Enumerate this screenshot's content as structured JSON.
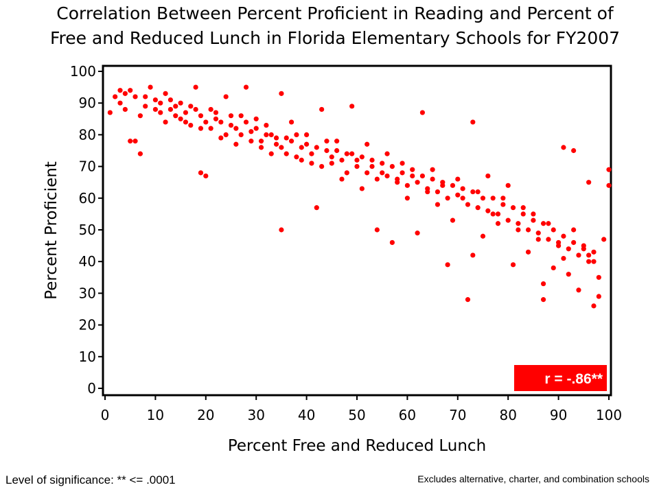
{
  "chart_data": {
    "type": "scatter",
    "title_line1": "Correlation Between Percent Proficient in Reading and Percent of",
    "title_line2": "Free and Reduced Lunch in Florida Elementary Schools for FY2007",
    "xlabel": "Percent Free and Reduced Lunch",
    "ylabel": "Percent Proficient",
    "xlim": [
      0,
      100
    ],
    "ylim": [
      0,
      100
    ],
    "xticks": [
      "0",
      "10",
      "20",
      "30",
      "40",
      "50",
      "60",
      "70",
      "80",
      "90",
      "100"
    ],
    "yticks": [
      "0",
      "10",
      "20",
      "30",
      "40",
      "50",
      "60",
      "70",
      "80",
      "90",
      "100"
    ],
    "marker_color": "#ff0000",
    "annotation": "r = -.86**",
    "points": [
      [
        1,
        87
      ],
      [
        2,
        92
      ],
      [
        3,
        94
      ],
      [
        4,
        88
      ],
      [
        5,
        94
      ],
      [
        5,
        78
      ],
      [
        6,
        78
      ],
      [
        7,
        74
      ],
      [
        6,
        92
      ],
      [
        8,
        89
      ],
      [
        9,
        95
      ],
      [
        10,
        91
      ],
      [
        11,
        87
      ],
      [
        12,
        93
      ],
      [
        13,
        88
      ],
      [
        14,
        86
      ],
      [
        15,
        90
      ],
      [
        16,
        84
      ],
      [
        17,
        89
      ],
      [
        18,
        95
      ],
      [
        19,
        82
      ],
      [
        19,
        68
      ],
      [
        20,
        67
      ],
      [
        21,
        88
      ],
      [
        22,
        85
      ],
      [
        23,
        79
      ],
      [
        24,
        92
      ],
      [
        25,
        83
      ],
      [
        26,
        77
      ],
      [
        27,
        86
      ],
      [
        28,
        95
      ],
      [
        29,
        81
      ],
      [
        30,
        85
      ],
      [
        31,
        78
      ],
      [
        32,
        83
      ],
      [
        33,
        80
      ],
      [
        34,
        77
      ],
      [
        35,
        93
      ],
      [
        35,
        50
      ],
      [
        36,
        79
      ],
      [
        37,
        84
      ],
      [
        38,
        73
      ],
      [
        39,
        76
      ],
      [
        40,
        80
      ],
      [
        41,
        71
      ],
      [
        42,
        57
      ],
      [
        43,
        88
      ],
      [
        44,
        75
      ],
      [
        45,
        73
      ],
      [
        46,
        78
      ],
      [
        47,
        66
      ],
      [
        48,
        74
      ],
      [
        49,
        89
      ],
      [
        50,
        72
      ],
      [
        51,
        63
      ],
      [
        52,
        77
      ],
      [
        53,
        70
      ],
      [
        54,
        50
      ],
      [
        55,
        68
      ],
      [
        56,
        74
      ],
      [
        57,
        46
      ],
      [
        58,
        65
      ],
      [
        59,
        71
      ],
      [
        60,
        60
      ],
      [
        61,
        67
      ],
      [
        62,
        49
      ],
      [
        63,
        87
      ],
      [
        64,
        62
      ],
      [
        65,
        69
      ],
      [
        66,
        58
      ],
      [
        67,
        64
      ],
      [
        68,
        39
      ],
      [
        69,
        53
      ],
      [
        70,
        66
      ],
      [
        71,
        60
      ],
      [
        72,
        28
      ],
      [
        73,
        84
      ],
      [
        73,
        42
      ],
      [
        74,
        62
      ],
      [
        75,
        48
      ],
      [
        76,
        67
      ],
      [
        77,
        55
      ],
      [
        78,
        52
      ],
      [
        79,
        60
      ],
      [
        80,
        64
      ],
      [
        81,
        39
      ],
      [
        82,
        50
      ],
      [
        83,
        57
      ],
      [
        84,
        43
      ],
      [
        85,
        55
      ],
      [
        86,
        47
      ],
      [
        87,
        28
      ],
      [
        87,
        33
      ],
      [
        88,
        52
      ],
      [
        89,
        38
      ],
      [
        90,
        46
      ],
      [
        91,
        76
      ],
      [
        91,
        41
      ],
      [
        92,
        36
      ],
      [
        93,
        75
      ],
      [
        93,
        50
      ],
      [
        94,
        31
      ],
      [
        95,
        44
      ],
      [
        96,
        42
      ],
      [
        96,
        65
      ],
      [
        97,
        26
      ],
      [
        97,
        40
      ],
      [
        98,
        29
      ],
      [
        98,
        35
      ],
      [
        99,
        47
      ],
      [
        100,
        69
      ],
      [
        100,
        64
      ],
      [
        3,
        90
      ],
      [
        4,
        93
      ],
      [
        7,
        86
      ],
      [
        8,
        92
      ],
      [
        10,
        88
      ],
      [
        11,
        90
      ],
      [
        12,
        84
      ],
      [
        13,
        91
      ],
      [
        14,
        89
      ],
      [
        15,
        85
      ],
      [
        16,
        87
      ],
      [
        17,
        83
      ],
      [
        18,
        88
      ],
      [
        19,
        86
      ],
      [
        20,
        84
      ],
      [
        21,
        82
      ],
      [
        22,
        87
      ],
      [
        23,
        84
      ],
      [
        24,
        80
      ],
      [
        25,
        86
      ],
      [
        26,
        82
      ],
      [
        27,
        80
      ],
      [
        28,
        84
      ],
      [
        29,
        78
      ],
      [
        30,
        82
      ],
      [
        31,
        76
      ],
      [
        32,
        80
      ],
      [
        33,
        74
      ],
      [
        34,
        79
      ],
      [
        35,
        76
      ],
      [
        36,
        74
      ],
      [
        37,
        78
      ],
      [
        38,
        80
      ],
      [
        39,
        72
      ],
      [
        40,
        77
      ],
      [
        41,
        74
      ],
      [
        42,
        76
      ],
      [
        43,
        70
      ],
      [
        44,
        78
      ],
      [
        45,
        71
      ],
      [
        46,
        75
      ],
      [
        47,
        72
      ],
      [
        48,
        68
      ],
      [
        49,
        74
      ],
      [
        50,
        70
      ],
      [
        51,
        73
      ],
      [
        52,
        68
      ],
      [
        53,
        72
      ],
      [
        54,
        66
      ],
      [
        55,
        71
      ],
      [
        56,
        67
      ],
      [
        57,
        70
      ],
      [
        58,
        66
      ],
      [
        59,
        68
      ],
      [
        60,
        64
      ],
      [
        61,
        69
      ],
      [
        62,
        65
      ],
      [
        63,
        67
      ],
      [
        64,
        63
      ],
      [
        65,
        66
      ],
      [
        66,
        62
      ],
      [
        67,
        65
      ],
      [
        68,
        60
      ],
      [
        69,
        64
      ],
      [
        70,
        61
      ],
      [
        71,
        63
      ],
      [
        72,
        58
      ],
      [
        73,
        62
      ],
      [
        74,
        57
      ],
      [
        75,
        60
      ],
      [
        76,
        56
      ],
      [
        77,
        60
      ],
      [
        78,
        55
      ],
      [
        79,
        58
      ],
      [
        80,
        53
      ],
      [
        81,
        57
      ],
      [
        82,
        52
      ],
      [
        83,
        55
      ],
      [
        84,
        50
      ],
      [
        85,
        53
      ],
      [
        86,
        49
      ],
      [
        87,
        52
      ],
      [
        88,
        47
      ],
      [
        89,
        50
      ],
      [
        90,
        45
      ],
      [
        91,
        48
      ],
      [
        92,
        44
      ],
      [
        93,
        46
      ],
      [
        94,
        42
      ],
      [
        95,
        45
      ],
      [
        96,
        40
      ],
      [
        97,
        43
      ]
    ]
  },
  "footnotes": {
    "left": "Level of significance: ** <= .0001",
    "right": "Excludes alternative, charter, and combination schools"
  }
}
